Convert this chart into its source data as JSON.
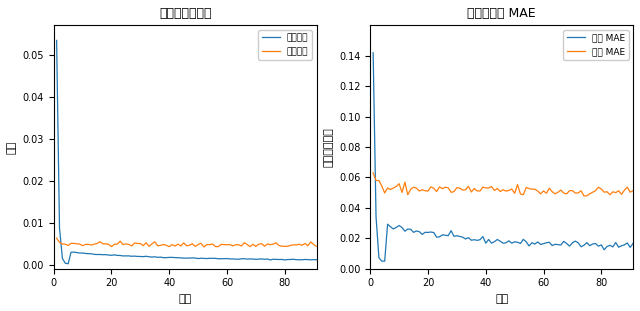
{
  "title_left": "训练和验证损失",
  "title_right": "训练和验证 MAE",
  "xlabel": "轮次",
  "ylabel_left": "损失",
  "ylabel_right": "平均绝对误差",
  "legend_left_train": "训练损失",
  "legend_left_val": "验证损失",
  "legend_right_train": "训练 MAE",
  "legend_right_val": "验证 MAE",
  "epochs": 91,
  "blue_color": "#1f77b4",
  "orange_color": "#ff7f0e",
  "figsize": [
    6.4,
    3.11
  ],
  "dpi": 100
}
